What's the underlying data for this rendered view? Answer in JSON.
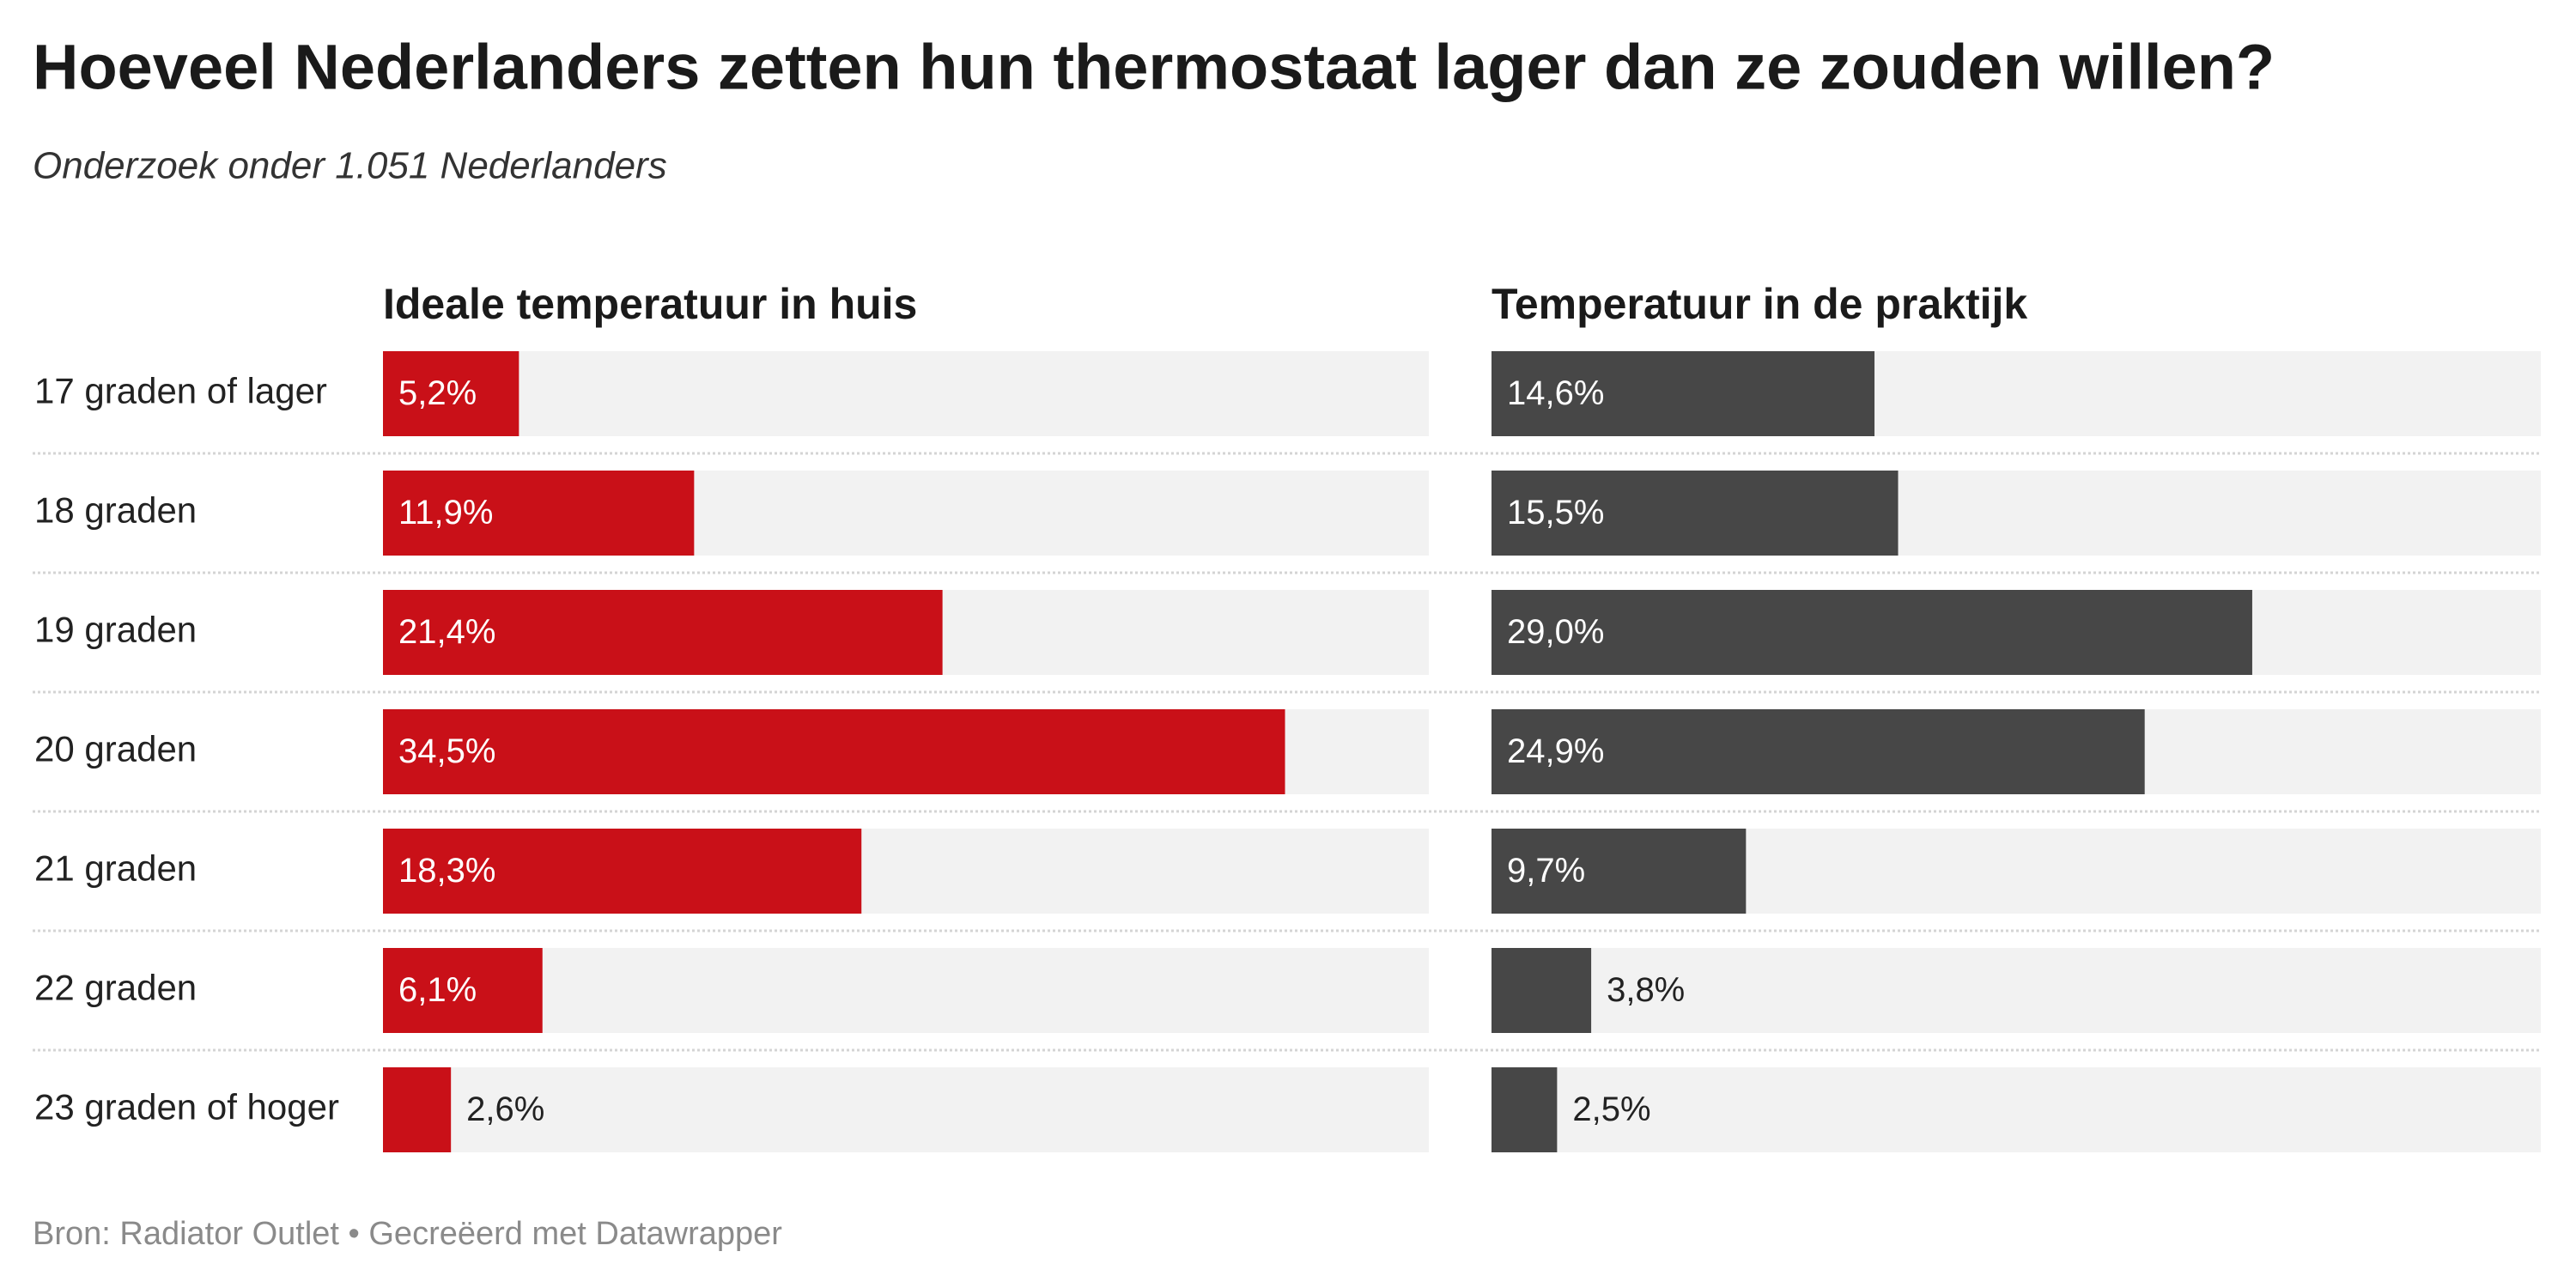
{
  "chart_data": {
    "type": "bar",
    "orientation": "horizontal",
    "title": "Hoeveel Nederlanders zetten hun thermostaat lager dan ze zouden willen?",
    "subtitle": "Onderzoek onder 1.051 Nederlanders",
    "source": "Bron: Radiator Outlet • Gecreëerd met Datawrapper",
    "categories": [
      "17 graden of lager",
      "18 graden",
      "19 graden",
      "20 graden",
      "21 graden",
      "22 graden",
      "23 graden of hoger"
    ],
    "xlim": [
      0,
      40
    ],
    "series": [
      {
        "name": "Ideale temperatuur in huis",
        "color": "#c91018",
        "values": [
          5.2,
          11.9,
          21.4,
          34.5,
          18.3,
          6.1,
          2.6
        ],
        "value_labels": [
          "5,2%",
          "11,9%",
          "21,4%",
          "34,5%",
          "18,3%",
          "6,1%",
          "2,6%"
        ]
      },
      {
        "name": "Temperatuur in de praktijk",
        "color": "#474747",
        "values": [
          14.6,
          15.5,
          29.0,
          24.9,
          9.7,
          3.8,
          2.5
        ],
        "value_labels": [
          "14,6%",
          "15,5%",
          "29,0%",
          "24,9%",
          "9,7%",
          "3,8%",
          "2,5%"
        ]
      }
    ]
  }
}
